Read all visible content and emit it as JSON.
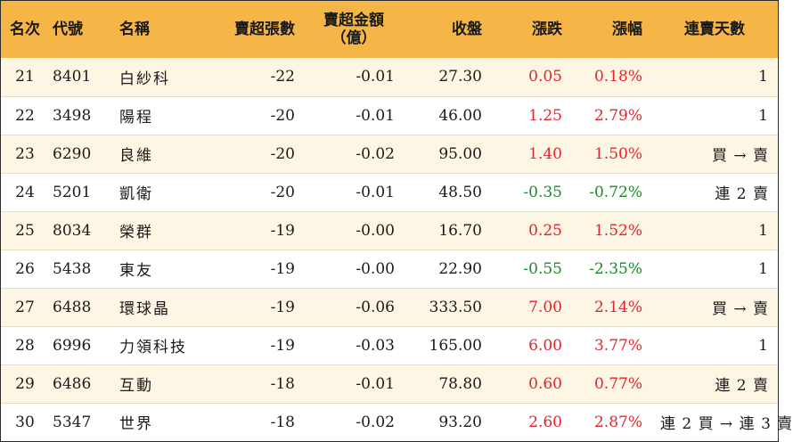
{
  "colors": {
    "header_bg": "#f5b547",
    "row_odd_bg": "#fef6e4",
    "row_even_bg": "#ffffff",
    "up": "#e0262e",
    "down": "#1a8a2a"
  },
  "headers": {
    "rank": "名次",
    "code": "代號",
    "name": "名稱",
    "net_sell_volume": "賣超張數",
    "net_sell_amount_line1": "賣超金額",
    "net_sell_amount_line2": "（億）",
    "close": "收盤",
    "change": "漲跌",
    "change_pct": "漲幅",
    "consecutive_days": "連賣天數"
  },
  "rows": [
    {
      "rank": "21",
      "code": "8401",
      "name": "白紗科",
      "vol": "-22",
      "amt": "-0.01",
      "close": "27.30",
      "chg": "0.05",
      "pct": "0.18%",
      "dir": "up",
      "days": "1"
    },
    {
      "rank": "22",
      "code": "3498",
      "name": "陽程",
      "vol": "-20",
      "amt": "-0.01",
      "close": "46.00",
      "chg": "1.25",
      "pct": "2.79%",
      "dir": "up",
      "days": "1"
    },
    {
      "rank": "23",
      "code": "6290",
      "name": "良維",
      "vol": "-20",
      "amt": "-0.02",
      "close": "95.00",
      "chg": "1.40",
      "pct": "1.50%",
      "dir": "up",
      "days": "買 → 賣"
    },
    {
      "rank": "24",
      "code": "5201",
      "name": "凱衛",
      "vol": "-20",
      "amt": "-0.01",
      "close": "48.50",
      "chg": "-0.35",
      "pct": "-0.72%",
      "dir": "down",
      "days": "連 2 賣"
    },
    {
      "rank": "25",
      "code": "8034",
      "name": "榮群",
      "vol": "-19",
      "amt": "-0.00",
      "close": "16.70",
      "chg": "0.25",
      "pct": "1.52%",
      "dir": "up",
      "days": "1"
    },
    {
      "rank": "26",
      "code": "5438",
      "name": "東友",
      "vol": "-19",
      "amt": "-0.00",
      "close": "22.90",
      "chg": "-0.55",
      "pct": "-2.35%",
      "dir": "down",
      "days": "1"
    },
    {
      "rank": "27",
      "code": "6488",
      "name": "環球晶",
      "vol": "-19",
      "amt": "-0.06",
      "close": "333.50",
      "chg": "7.00",
      "pct": "2.14%",
      "dir": "up",
      "days": "買 → 賣"
    },
    {
      "rank": "28",
      "code": "6996",
      "name": "力領科技",
      "vol": "-19",
      "amt": "-0.03",
      "close": "165.00",
      "chg": "6.00",
      "pct": "3.77%",
      "dir": "up",
      "days": "1"
    },
    {
      "rank": "29",
      "code": "6486",
      "name": "互動",
      "vol": "-18",
      "amt": "-0.01",
      "close": "78.80",
      "chg": "0.60",
      "pct": "0.77%",
      "dir": "up",
      "days": "連 2 賣"
    },
    {
      "rank": "30",
      "code": "5347",
      "name": "世界",
      "vol": "-18",
      "amt": "-0.02",
      "close": "93.20",
      "chg": "2.60",
      "pct": "2.87%",
      "dir": "up",
      "days": "連 2 買 → 連 3 賣"
    }
  ]
}
